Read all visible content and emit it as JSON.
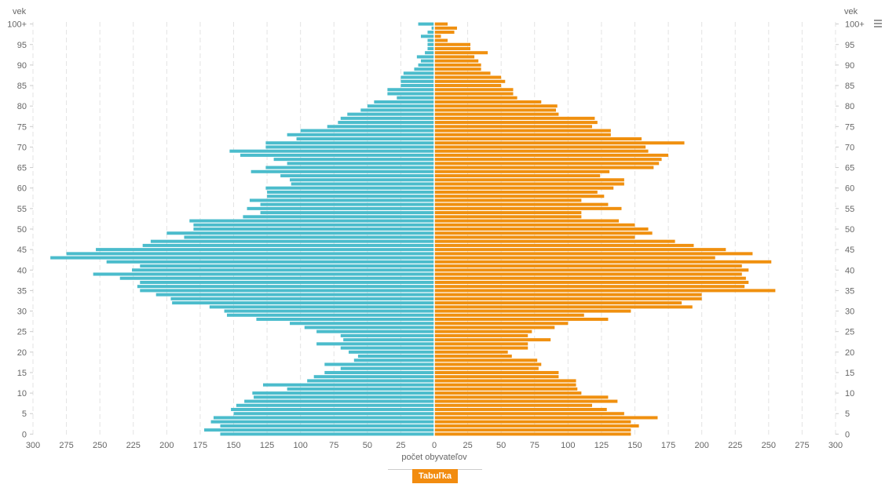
{
  "chart_data": {
    "type": "bar",
    "orientation": "horizontal-pyramid",
    "title": "",
    "xlabel": "počet obyvateľov",
    "ylabel": "vek",
    "xlim": [
      -300,
      300
    ],
    "x_ticks": [
      -300,
      -275,
      -250,
      -225,
      -200,
      -175,
      -150,
      -125,
      -100,
      -75,
      -50,
      -25,
      0,
      25,
      50,
      75,
      100,
      125,
      150,
      175,
      200,
      225,
      250,
      275,
      300
    ],
    "x_tick_labels": [
      "300",
      "275",
      "250",
      "225",
      "200",
      "175",
      "150",
      "125",
      "100",
      "75",
      "50",
      "25",
      "0",
      "25",
      "50",
      "75",
      "100",
      "125",
      "150",
      "175",
      "200",
      "225",
      "250",
      "275",
      "300"
    ],
    "y_tick_labels": [
      "0",
      "5",
      "10",
      "15",
      "20",
      "25",
      "30",
      "35",
      "40",
      "45",
      "50",
      "55",
      "60",
      "65",
      "70",
      "75",
      "80",
      "85",
      "90",
      "95",
      "100+"
    ],
    "categories": [
      "0",
      "1",
      "2",
      "3",
      "4",
      "5",
      "6",
      "7",
      "8",
      "9",
      "10",
      "11",
      "12",
      "13",
      "14",
      "15",
      "16",
      "17",
      "18",
      "19",
      "20",
      "21",
      "22",
      "23",
      "24",
      "25",
      "26",
      "27",
      "28",
      "29",
      "30",
      "31",
      "32",
      "33",
      "34",
      "35",
      "36",
      "37",
      "38",
      "39",
      "40",
      "41",
      "42",
      "43",
      "44",
      "45",
      "46",
      "47",
      "48",
      "49",
      "50",
      "51",
      "52",
      "53",
      "54",
      "55",
      "56",
      "57",
      "58",
      "59",
      "60",
      "61",
      "62",
      "63",
      "64",
      "65",
      "66",
      "67",
      "68",
      "69",
      "70",
      "71",
      "72",
      "73",
      "74",
      "75",
      "76",
      "77",
      "78",
      "79",
      "80",
      "81",
      "82",
      "83",
      "84",
      "85",
      "86",
      "87",
      "88",
      "89",
      "90",
      "91",
      "92",
      "93",
      "94",
      "95",
      "96",
      "97",
      "98",
      "99",
      "100+"
    ],
    "series": [
      {
        "color": "#4bbccc",
        "side": "left",
        "values": [
          160,
          172,
          160,
          167,
          165,
          150,
          152,
          148,
          142,
          135,
          136,
          110,
          128,
          95,
          90,
          82,
          70,
          82,
          60,
          57,
          64,
          70,
          88,
          68,
          70,
          88,
          97,
          108,
          133,
          155,
          157,
          168,
          196,
          197,
          208,
          220,
          222,
          220,
          235,
          255,
          226,
          220,
          245,
          287,
          275,
          253,
          218,
          212,
          187,
          200,
          180,
          180,
          183,
          143,
          130,
          140,
          130,
          138,
          125,
          125,
          126,
          107,
          108,
          115,
          137,
          126,
          110,
          120,
          145,
          153,
          126,
          126,
          103,
          110,
          100,
          80,
          72,
          70,
          65,
          55,
          50,
          45,
          28,
          35,
          35,
          25,
          25,
          25,
          23,
          15,
          12,
          10,
          13,
          7,
          5,
          5,
          5,
          10,
          5,
          2,
          12
        ]
      },
      {
        "color": "#f0900f",
        "side": "right",
        "values": [
          147,
          147,
          153,
          147,
          167,
          142,
          129,
          118,
          137,
          130,
          110,
          107,
          106,
          106,
          93,
          93,
          78,
          80,
          77,
          58,
          55,
          70,
          70,
          87,
          70,
          73,
          90,
          100,
          130,
          112,
          147,
          193,
          185,
          200,
          200,
          255,
          232,
          235,
          233,
          230,
          235,
          230,
          252,
          210,
          238,
          218,
          194,
          180,
          150,
          163,
          160,
          150,
          138,
          110,
          110,
          140,
          130,
          110,
          127,
          122,
          134,
          142,
          142,
          124,
          131,
          164,
          168,
          170,
          175,
          160,
          158,
          187,
          155,
          132,
          132,
          118,
          122,
          120,
          93,
          91,
          92,
          80,
          62,
          59,
          59,
          50,
          53,
          50,
          42,
          35,
          35,
          33,
          30,
          40,
          27,
          27,
          10,
          5,
          15,
          17,
          10
        ]
      }
    ],
    "grid": true,
    "legend": "none"
  },
  "ui": {
    "table_button_label": "Tabuľka",
    "menu_icon": "hamburger-menu-icon"
  }
}
